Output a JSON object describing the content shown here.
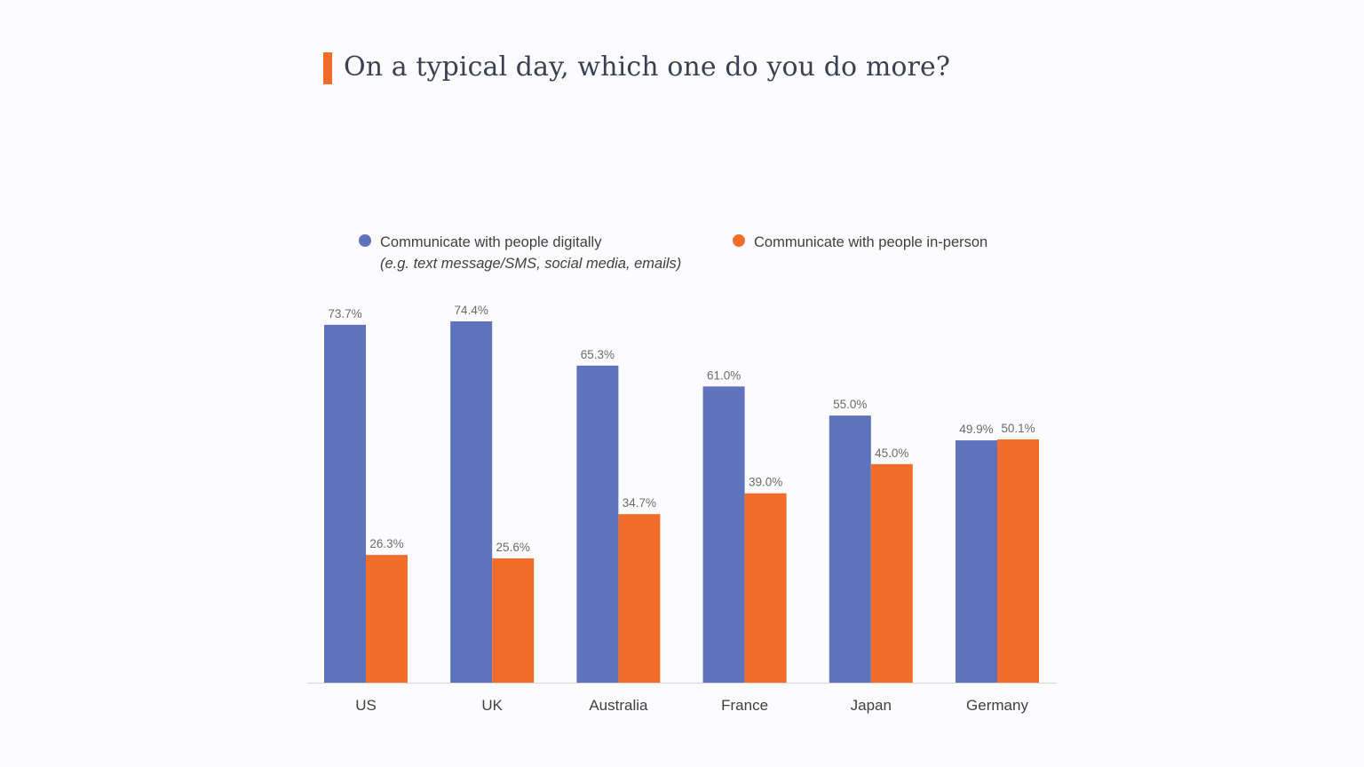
{
  "colors": {
    "accent": "#f26c2a",
    "digital": "#5f73bd",
    "inperson": "#f26c2a",
    "title": "#3a4150",
    "axis_text": "#404040",
    "value_text": "#6b6b6b",
    "baseline": "#d9d9d9"
  },
  "header": {
    "title": "On a typical day, which one do you do more?"
  },
  "legend": {
    "digital_label": "Communicate with people digitally",
    "digital_note": "(e.g. text message/SMS, social media, emails)",
    "inperson_label": "Communicate with people in-person"
  },
  "chart_data": {
    "type": "bar",
    "categories": [
      "US",
      "UK",
      "Australia",
      "France",
      "Japan",
      "Germany"
    ],
    "series": [
      {
        "name": "Communicate with people digitally",
        "values": [
          73.7,
          74.4,
          65.3,
          61.0,
          55.0,
          49.9
        ],
        "labels": [
          "73.7%",
          "74.4%",
          "65.3%",
          "61.0%",
          "55.0%",
          "49.9%"
        ]
      },
      {
        "name": "Communicate with people in-person",
        "values": [
          26.3,
          25.6,
          34.7,
          39.0,
          45.0,
          50.1
        ],
        "labels": [
          "26.3%",
          "25.6%",
          "34.7%",
          "39.0%",
          "45.0%",
          "50.1%"
        ]
      }
    ],
    "title": "On a typical day, which one do you do more?",
    "xlabel": "",
    "ylabel": "",
    "ylim": [
      0,
      100
    ],
    "grid": false,
    "legend_position": "top"
  }
}
